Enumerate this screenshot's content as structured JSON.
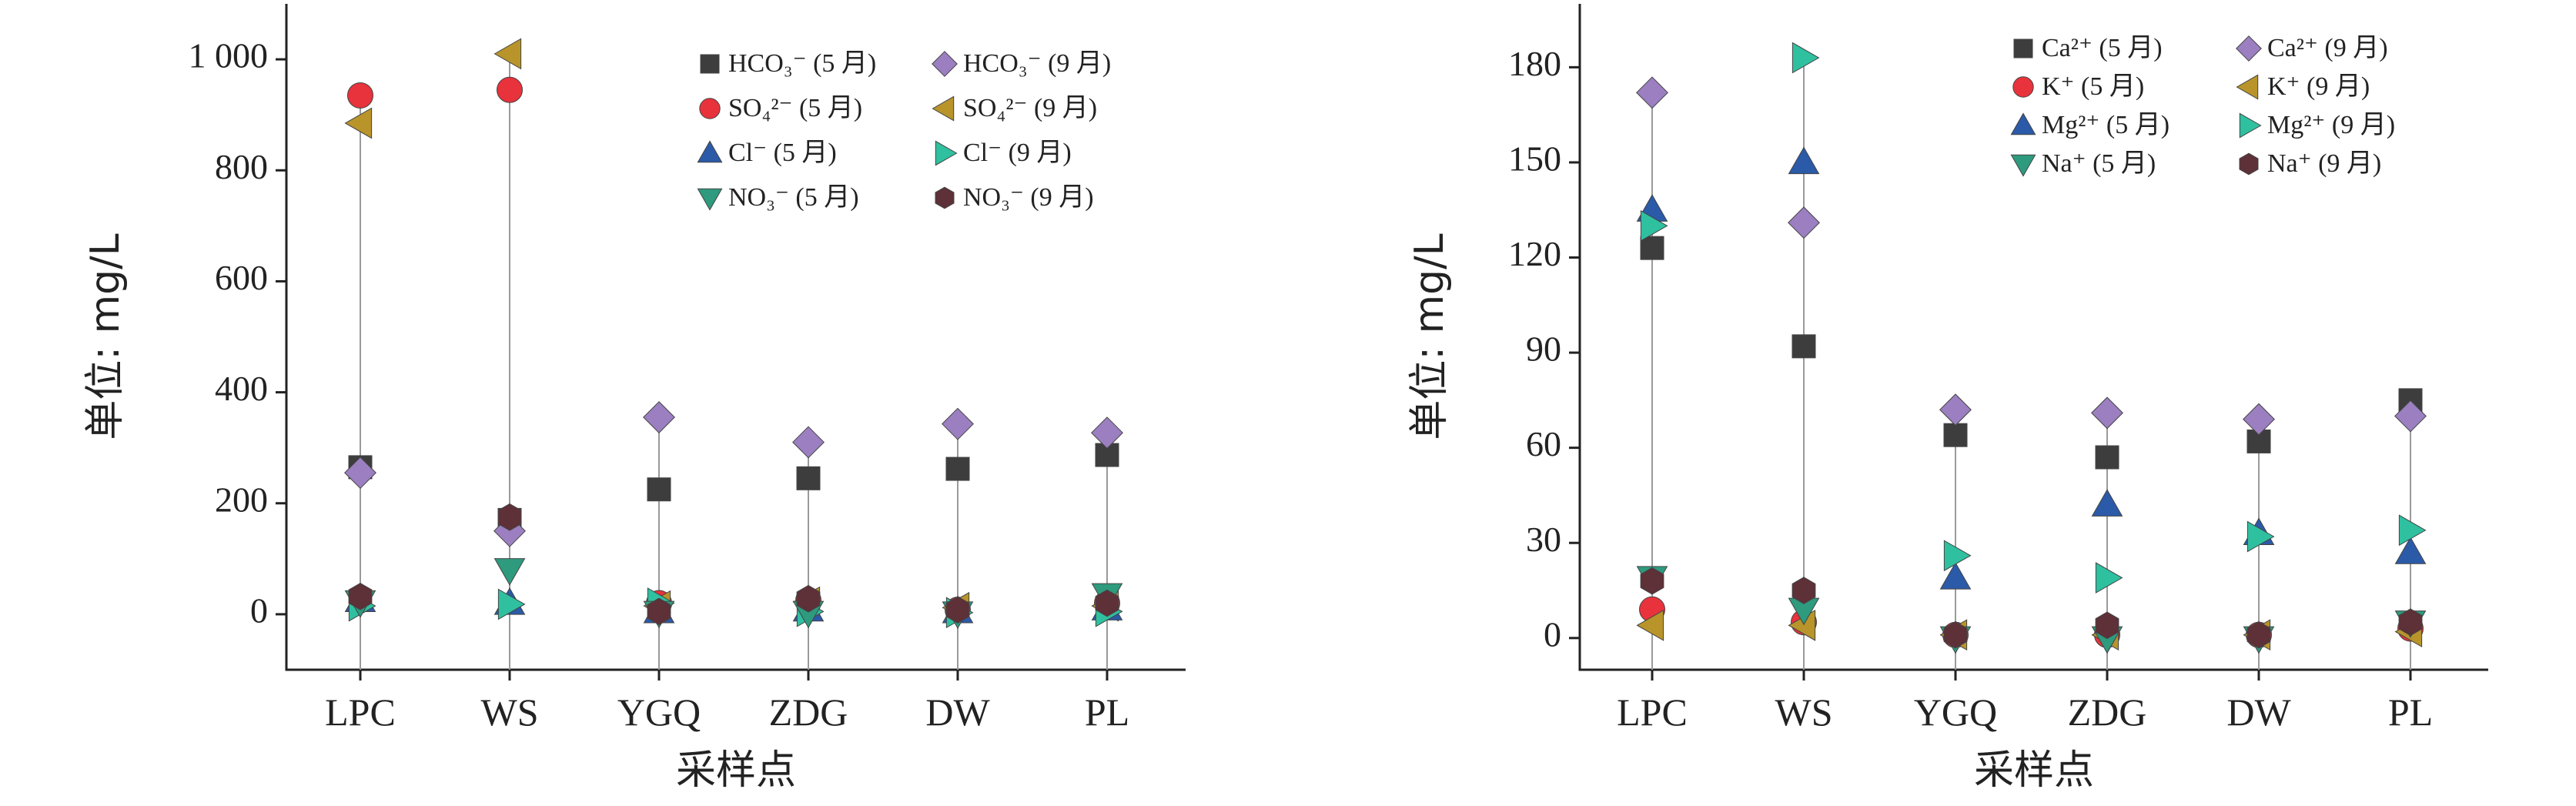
{
  "chart_data": [
    {
      "type": "scatter",
      "title": "",
      "xlabel": "采样点",
      "ylabel": "单位: mg/L",
      "categories": [
        "LPC",
        "WS",
        "YGQ",
        "ZDG",
        "DW",
        "PL"
      ],
      "ylim": [
        -100,
        1100
      ],
      "yticks": [
        0,
        200,
        400,
        600,
        800,
        1000
      ],
      "ytick_labels": [
        "0",
        "200",
        "400",
        "600",
        "800",
        "1 000"
      ],
      "grid": false,
      "legend_position": "top-right",
      "series": [
        {
          "name": "HCO₃⁻ (5 月)",
          "marker": "square",
          "color": "#3d3d3d",
          "values": [
            265,
            170,
            225,
            245,
            262,
            287
          ]
        },
        {
          "name": "HCO₃⁻ (9 月)",
          "marker": "diamond",
          "color": "#9b7fc0",
          "values": [
            255,
            150,
            355,
            310,
            343,
            327
          ]
        },
        {
          "name": "SO₄²⁻ (5 月)",
          "marker": "circle",
          "color": "#e8323c",
          "values": [
            935,
            945,
            20,
            25,
            8,
            20
          ]
        },
        {
          "name": "SO₄²⁻ (9 月)",
          "marker": "triangle-left",
          "color": "#b8942a",
          "values": [
            885,
            1010,
            15,
            22,
            12,
            15
          ]
        },
        {
          "name": "Cl⁻ (5 月)",
          "marker": "triangle-up",
          "color": "#2b5aa8",
          "values": [
            25,
            20,
            5,
            8,
            5,
            10
          ]
        },
        {
          "name": "Cl⁻ (9 月)",
          "marker": "triangle-right",
          "color": "#2fc0a0",
          "values": [
            15,
            18,
            20,
            5,
            3,
            5
          ]
        },
        {
          "name": "NO₃⁻ (5 月)",
          "marker": "triangle-down",
          "color": "#2e9a7e",
          "values": [
            22,
            80,
            3,
            3,
            2,
            35
          ]
        },
        {
          "name": "NO₃⁻ (9 月)",
          "marker": "hexagon",
          "color": "#5e3038",
          "values": [
            32,
            175,
            5,
            28,
            8,
            20
          ]
        }
      ]
    },
    {
      "type": "scatter",
      "title": "",
      "xlabel": "采样点",
      "ylabel": "单位: mg/L",
      "categories": [
        "LPC",
        "WS",
        "YGQ",
        "ZDG",
        "DW",
        "PL"
      ],
      "ylim": [
        -10,
        200
      ],
      "yticks": [
        0,
        30,
        60,
        90,
        120,
        150,
        180
      ],
      "ytick_labels": [
        "0",
        "30",
        "60",
        "90",
        "120",
        "150",
        "180"
      ],
      "grid": false,
      "legend_position": "top-right",
      "series": [
        {
          "name": "Ca²⁺ (5 月)",
          "marker": "square",
          "color": "#3d3d3d",
          "values": [
            123,
            92,
            64,
            57,
            62,
            75
          ]
        },
        {
          "name": "Ca²⁺ (9 月)",
          "marker": "diamond",
          "color": "#9b7fc0",
          "values": [
            172,
            131,
            72,
            71,
            69,
            70
          ]
        },
        {
          "name": "K⁺ (5 月)",
          "marker": "circle",
          "color": "#e8323c",
          "values": [
            9,
            5,
            1,
            1,
            1,
            3
          ]
        },
        {
          "name": "K⁺ (9 月)",
          "marker": "triangle-left",
          "color": "#b8942a",
          "values": [
            4,
            4,
            1,
            1,
            1,
            2
          ]
        },
        {
          "name": "Mg²⁺ (5 月)",
          "marker": "triangle-up",
          "color": "#2b5aa8",
          "values": [
            135,
            150,
            19,
            42,
            33,
            27
          ]
        },
        {
          "name": "Mg²⁺ (9 月)",
          "marker": "triangle-right",
          "color": "#2fc0a0",
          "values": [
            130,
            183,
            26,
            19,
            32,
            34
          ]
        },
        {
          "name": "Na⁺ (5 月)",
          "marker": "triangle-down",
          "color": "#2e9a7e",
          "values": [
            19,
            9,
            0,
            0,
            0,
            5
          ]
        },
        {
          "name": "Na⁺ (9 月)",
          "marker": "hexagon",
          "color": "#5e3038",
          "values": [
            18,
            15,
            1,
            4,
            1,
            5
          ]
        }
      ]
    }
  ]
}
